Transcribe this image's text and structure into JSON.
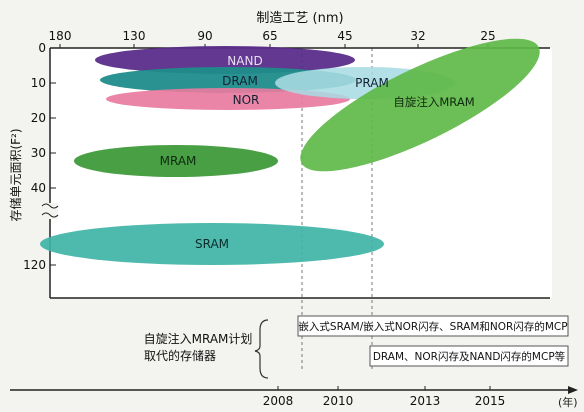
{
  "chart_data": {
    "type": "scatter",
    "title": "",
    "top_axis": {
      "label": "制造工艺 (nm)",
      "ticks": [
        "180",
        "130",
        "90",
        "65",
        "45",
        "32",
        "25"
      ]
    },
    "bottom_axis": {
      "label": "(年)",
      "ticks": [
        "2008",
        "2010",
        "2013",
        "2015"
      ]
    },
    "y_axis": {
      "label": "存储单元面积(F²)",
      "ticks_upper": [
        "0",
        "10",
        "20",
        "30",
        "40"
      ],
      "ticks_lower": [
        "120"
      ],
      "broken": true,
      "ylim_upper": [
        0,
        40
      ]
    },
    "series": [
      {
        "name": "NAND",
        "label": "NAND",
        "color": "#5a2d8a",
        "node_range_nm": [
          130,
          45
        ],
        "cell_area_f2": [
          2,
          6
        ]
      },
      {
        "name": "DRAM",
        "label": "DRAM",
        "color": "#1f8d8b",
        "node_range_nm": [
          130,
          45
        ],
        "cell_area_f2": [
          6,
          12
        ]
      },
      {
        "name": "NOR",
        "label": "NOR",
        "color": "#e87ba0",
        "node_range_nm": [
          130,
          45
        ],
        "cell_area_f2": [
          12,
          17
        ]
      },
      {
        "name": "PRAM",
        "label": "PRAM",
        "color": "#a9dbe3",
        "node_range_nm": [
          65,
          32
        ],
        "cell_area_f2": [
          6,
          14
        ]
      },
      {
        "name": "自旋注入MRAM",
        "label": "自旋注入MRAM",
        "color": "#5fb848",
        "node_range_nm": [
          45,
          25
        ],
        "cell_area_f2": [
          4,
          30
        ]
      },
      {
        "name": "MRAM",
        "label": "MRAM",
        "color": "#3e9a3a",
        "node_range_nm": [
          180,
          65
        ],
        "cell_area_f2": [
          27,
          36
        ]
      },
      {
        "name": "SRAM",
        "label": "SRAM",
        "color": "#3fb3a6",
        "node_range_nm": [
          180,
          45
        ],
        "cell_area_f2": [
          110,
          130
        ]
      }
    ],
    "annotations": {
      "replacement_title_line1": "自旋注入MRAM计划",
      "replacement_title_line2": "取代的存储器",
      "box1": "嵌入式SRAM/嵌入式NOR闪存、SRAM和NOR闪存的MCP",
      "box2": "DRAM、NOR闪存及NAND闪存的MCP等"
    },
    "grid": true
  }
}
